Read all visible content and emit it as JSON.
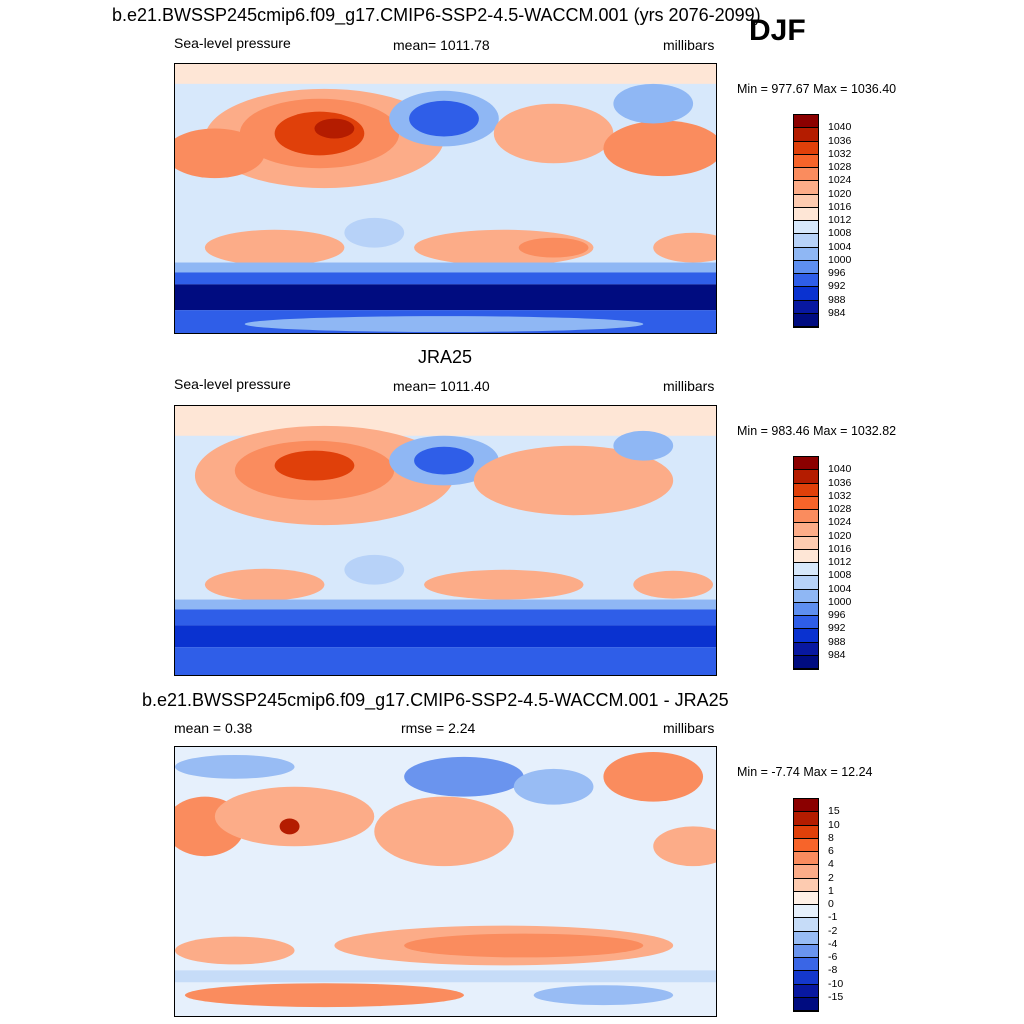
{
  "header": {
    "season": "DJF"
  },
  "panels": [
    {
      "id": "model",
      "title": "b.e21.BWSSP245cmip6.f09_g17.CMIP6-SSP2-4.5-WACCM.001 (yrs 2076-2099)",
      "left_label": "Sea-level pressure",
      "center_label": "mean= 1011.78",
      "right_label": "millibars",
      "minmax": "Min = 977.67 Max = 1036.40",
      "colorbar": {
        "labels": [
          "1040",
          "1036",
          "1032",
          "1028",
          "1024",
          "1020",
          "1016",
          "1012",
          "1008",
          "1004",
          "1000",
          "996",
          "992",
          "988",
          "984"
        ],
        "colors": [
          "#8b0000",
          "#b41c00",
          "#e0400a",
          "#f7642a",
          "#fa8c5e",
          "#fcac88",
          "#fdcbb0",
          "#fee6d6",
          "#d7e8fb",
          "#b7d2f8",
          "#8fb7f4",
          "#5e8ff0",
          "#2f5ee8",
          "#0a32d0",
          "#0818a0",
          "#000c80"
        ]
      }
    },
    {
      "id": "obs",
      "title": "JRA25",
      "left_label": "Sea-level pressure",
      "center_label": "mean= 1011.40",
      "right_label": "millibars",
      "minmax": "Min = 983.46 Max = 1032.82",
      "colorbar": {
        "labels": [
          "1040",
          "1036",
          "1032",
          "1028",
          "1024",
          "1020",
          "1016",
          "1012",
          "1008",
          "1004",
          "1000",
          "996",
          "992",
          "988",
          "984"
        ],
        "colors": [
          "#8b0000",
          "#b41c00",
          "#e0400a",
          "#f7642a",
          "#fa8c5e",
          "#fcac88",
          "#fdcbb0",
          "#fee6d6",
          "#d7e8fb",
          "#b7d2f8",
          "#8fb7f4",
          "#5e8ff0",
          "#2f5ee8",
          "#0a32d0",
          "#0818a0",
          "#000c80"
        ]
      }
    },
    {
      "id": "diff",
      "title": "b.e21.BWSSP245cmip6.f09_g17.CMIP6-SSP2-4.5-WACCM.001 - JRA25",
      "left_label": "mean =   0.38",
      "center_label": "rmse =   2.24",
      "right_label": "millibars",
      "minmax": "Min =  -7.74 Max =  12.24",
      "colorbar": {
        "labels": [
          "15",
          "10",
          "8",
          "6",
          "4",
          "2",
          "1",
          "0",
          "-1",
          "-2",
          "-4",
          "-6",
          "-8",
          "-10",
          "-15"
        ],
        "colors": [
          "#8b0000",
          "#b41c00",
          "#e0400a",
          "#f7642a",
          "#fa8c5e",
          "#fcac88",
          "#fdcbb0",
          "#fff0e6",
          "#e6f0fc",
          "#c6dcf8",
          "#98bcf4",
          "#6a94ee",
          "#3a66e6",
          "#1438cc",
          "#0818a0",
          "#000c80"
        ]
      }
    }
  ]
}
